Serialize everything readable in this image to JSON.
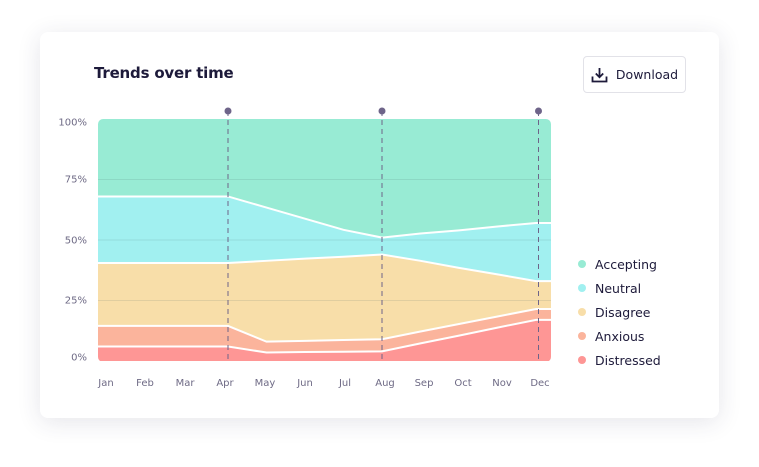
{
  "card": {
    "title": "Trends over time",
    "download_label": "Download",
    "download_icon": "download-icon"
  },
  "chart_data": {
    "type": "area",
    "stacked": true,
    "normalized": true,
    "categories": [
      "Jan",
      "Feb",
      "Mar",
      "Apr",
      "May",
      "Jun",
      "Jul",
      "Aug",
      "Sep",
      "Oct",
      "Nov",
      "Dec"
    ],
    "yticks": [
      "0%",
      "25%",
      "50%",
      "75%",
      "100%"
    ],
    "ylim": [
      0,
      100
    ],
    "grid": true,
    "legend_position": "right",
    "markers": [
      "Apr",
      "Aug",
      "Dec"
    ],
    "series": [
      {
        "name": "Distressed",
        "color": "#fe9695",
        "values": [
          6,
          6,
          6,
          6,
          3.5,
          3.7,
          3.8,
          4,
          7.3,
          10.5,
          13.8,
          17
        ]
      },
      {
        "name": "Anxious",
        "color": "#fbb49c",
        "values": [
          8.5,
          8.5,
          8.5,
          8.5,
          4.5,
          4.6,
          4.9,
          5,
          4.9,
          4.8,
          4.6,
          4.5
        ]
      },
      {
        "name": "Disagree",
        "color": "#f8dea9",
        "values": [
          26,
          26,
          26,
          26,
          33.4,
          34,
          34.4,
          35,
          29.2,
          23.2,
          17.4,
          11.5
        ]
      },
      {
        "name": "Neutral",
        "color": "#a1f0f0",
        "values": [
          27.5,
          27.5,
          27.5,
          27.5,
          22,
          16.5,
          11.1,
          7,
          11.3,
          15.5,
          19.8,
          24
        ]
      },
      {
        "name": "Accepting",
        "color": "#98ebd4",
        "values": [
          32,
          32,
          32,
          32,
          36.6,
          41.2,
          45.8,
          49,
          47.3,
          46,
          44.4,
          43
        ]
      }
    ]
  }
}
